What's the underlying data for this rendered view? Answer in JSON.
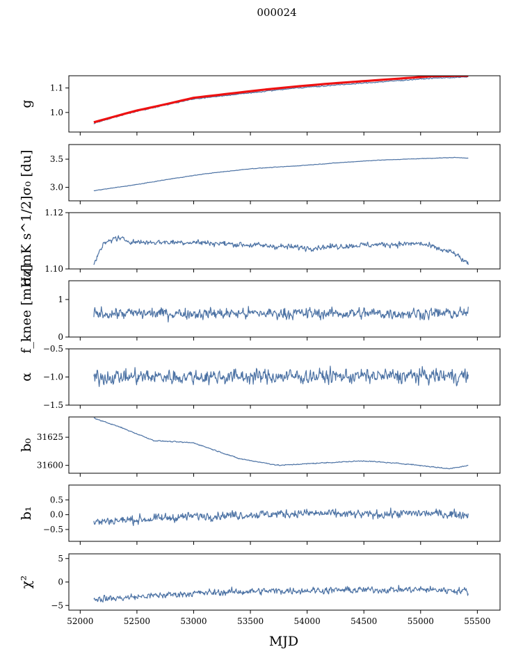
{
  "figure": {
    "title": "000024",
    "xlabel": "MJD"
  },
  "chart_data": {
    "type": "line",
    "title": "000024",
    "xlabel": "MJD",
    "xlim": [
      51900,
      55700
    ],
    "x_ticks": [
      52000,
      52500,
      53000,
      53500,
      54000,
      54500,
      55000,
      55500
    ],
    "x_start": 52120,
    "x_end": 55420,
    "panels": [
      {
        "key": "g",
        "ylabel": "g",
        "ylim": [
          0.92,
          1.15
        ],
        "yticks": [
          1.0,
          1.1
        ],
        "ytick_labels": [
          "1.0",
          "1.1"
        ],
        "series": [
          {
            "role": "data",
            "color": "#4c72a4",
            "x": [
              52120,
              52300,
              52500,
              52700,
              53000,
              53300,
              53600,
              53900,
              54200,
              54500,
              54800,
              55100,
              55420
            ],
            "y": [
              0.955,
              0.98,
              1.005,
              1.025,
              1.055,
              1.07,
              1.085,
              1.1,
              1.11,
              1.12,
              1.13,
              1.14,
              1.145
            ],
            "noise": 0.002
          },
          {
            "role": "model",
            "color": "#ee1111",
            "x": [
              52120,
              52300,
              52500,
              52700,
              53000,
              53300,
              53600,
              53900,
              54200,
              54500,
              54800,
              55100,
              55420
            ],
            "y": [
              0.96,
              0.983,
              1.008,
              1.028,
              1.06,
              1.076,
              1.092,
              1.106,
              1.118,
              1.128,
              1.138,
              1.148,
              1.15
            ],
            "noise": 0.0
          }
        ]
      },
      {
        "key": "sigma0_du",
        "ylabel": "σ₀ [du]",
        "ylim": [
          2.76,
          3.76
        ],
        "yticks": [
          3.0,
          3.5
        ],
        "ytick_labels": [
          "3.0",
          "3.5"
        ],
        "series": [
          {
            "role": "data",
            "color": "#4c72a4",
            "x": [
              52120,
              52500,
              52800,
              53100,
              53500,
              53900,
              54300,
              54600,
              55000,
              55300,
              55420
            ],
            "y": [
              2.94,
              3.05,
              3.15,
              3.24,
              3.33,
              3.38,
              3.44,
              3.48,
              3.51,
              3.53,
              3.52
            ],
            "noise": 0.004
          }
        ]
      },
      {
        "key": "sigma0_mK",
        "ylabel": "σ₀[mK s^1/2]",
        "ylim": [
          1.1,
          1.12
        ],
        "yticks": [
          1.1,
          1.12
        ],
        "ytick_labels": [
          "1.10",
          "1.12"
        ],
        "series": [
          {
            "role": "data",
            "color": "#4c72a4",
            "x": [
              52120,
              52200,
              52300,
              52500,
              53000,
              53500,
              54000,
              54500,
              55000,
              55300,
              55420
            ],
            "y": [
              1.1015,
              1.1085,
              1.111,
              1.1095,
              1.1095,
              1.1085,
              1.1075,
              1.1085,
              1.109,
              1.1055,
              1.1015
            ],
            "noise": 0.0009
          }
        ]
      },
      {
        "key": "fknee",
        "ylabel": "f_knee [mHz]",
        "ylim": [
          0,
          1.5
        ],
        "yticks": [
          0,
          1
        ],
        "ytick_labels": [
          "0",
          "1"
        ],
        "series": [
          {
            "role": "data",
            "color": "#4c72a4",
            "x": [
              52120,
              55420
            ],
            "y": [
              0.63,
              0.63
            ],
            "noise": 0.14
          }
        ]
      },
      {
        "key": "alpha",
        "ylabel": "α",
        "ylim": [
          -1.5,
          -0.5
        ],
        "yticks": [
          -1.5,
          -1.0,
          -0.5
        ],
        "ytick_labels": [
          "−1.5",
          "−1.0",
          "−0.5"
        ],
        "series": [
          {
            "role": "data",
            "color": "#4c72a4",
            "x": [
              52120,
              55420
            ],
            "y": [
              -1.0,
              -0.98
            ],
            "noise": 0.12
          }
        ]
      },
      {
        "key": "b0",
        "ylabel": "b₀",
        "ylim": [
          31593,
          31643
        ],
        "yticks": [
          31600,
          31625
        ],
        "ytick_labels": [
          "31600",
          "31625"
        ],
        "series": [
          {
            "role": "data",
            "color": "#4c72a4",
            "x": [
              52120,
              52350,
              52650,
              53000,
              53400,
              53750,
              54100,
              54500,
              54900,
              55250,
              55420
            ],
            "y": [
              31642,
              31634,
              31622,
              31620,
              31606,
              31600,
              31602,
              31604,
              31601,
              31597,
              31600
            ],
            "noise": 0.4
          }
        ]
      },
      {
        "key": "b1",
        "ylabel": "b₁",
        "ylim": [
          -0.9,
          1.0
        ],
        "yticks": [
          -0.5,
          0.0,
          0.5
        ],
        "ytick_labels": [
          "−0.5",
          "0.0",
          "0.5"
        ],
        "series": [
          {
            "role": "data",
            "color": "#4c72a4",
            "x": [
              52120,
              52300,
              52600,
              53000,
              53500,
              54000,
              54500,
              55000,
              55420
            ],
            "y": [
              -0.25,
              -0.2,
              -0.15,
              -0.05,
              0.0,
              0.05,
              0.0,
              0.05,
              0.0
            ],
            "noise": 0.13
          }
        ]
      },
      {
        "key": "chi2",
        "ylabel": "χ²",
        "ylim": [
          -6,
          6
        ],
        "yticks": [
          -5,
          0,
          5
        ],
        "ytick_labels": [
          "−5",
          "0",
          "5"
        ],
        "series": [
          {
            "role": "data",
            "color": "#4c72a4",
            "x": [
              52120,
              52300,
              52600,
              53000,
              53500,
              54000,
              54500,
              55000,
              55420
            ],
            "y": [
              -3.6,
              -3.5,
              -3.0,
              -2.4,
              -2.0,
              -1.8,
              -1.7,
              -1.6,
              -1.9
            ],
            "noise": 0.65
          }
        ]
      }
    ]
  }
}
